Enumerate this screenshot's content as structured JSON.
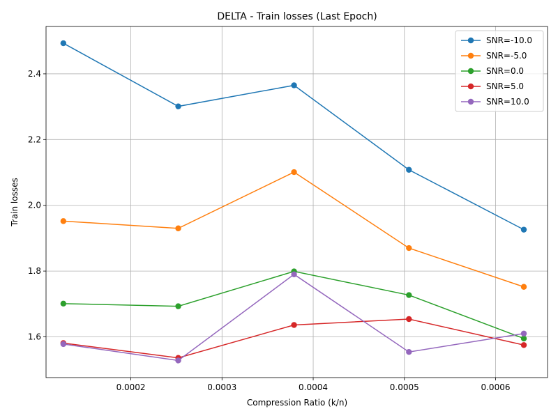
{
  "chart_data": {
    "type": "line",
    "title": "DELTA - Train losses (Last Epoch)",
    "xlabel": "Compression Ratio (k/n)",
    "ylabel": "Train losses",
    "xlim": [
      0.000107,
      0.000657
    ],
    "ylim": [
      1.476,
      2.544
    ],
    "xticks": [
      0.0002,
      0.0003,
      0.0004,
      0.0005,
      0.0006
    ],
    "xtick_labels": [
      "0.0002",
      "0.0003",
      "0.0004",
      "0.0005",
      "0.0006"
    ],
    "yticks": [
      1.6,
      1.8,
      2.0,
      2.2,
      2.4
    ],
    "ytick_labels": [
      "1.6",
      "1.8",
      "2.0",
      "2.2",
      "2.4"
    ],
    "grid": true,
    "legend_position": "top-right",
    "x": [
      0.000126,
      0.000252,
      0.000379,
      0.000505,
      0.000631
    ],
    "series": [
      {
        "name": "SNR=-10.0",
        "color": "#1f77b4",
        "values": [
          2.493,
          2.301,
          2.365,
          2.108,
          1.926
        ]
      },
      {
        "name": "SNR=-5.0",
        "color": "#ff7f0e",
        "values": [
          1.952,
          1.93,
          2.101,
          1.87,
          1.752
        ]
      },
      {
        "name": "SNR=0.0",
        "color": "#2ca02c",
        "values": [
          1.701,
          1.693,
          1.799,
          1.727,
          1.595
        ]
      },
      {
        "name": "SNR=5.0",
        "color": "#d62728",
        "values": [
          1.581,
          1.536,
          1.636,
          1.654,
          1.575
        ]
      },
      {
        "name": "SNR=10.0",
        "color": "#9467bd",
        "values": [
          1.578,
          1.528,
          1.79,
          1.554,
          1.61
        ]
      }
    ]
  }
}
